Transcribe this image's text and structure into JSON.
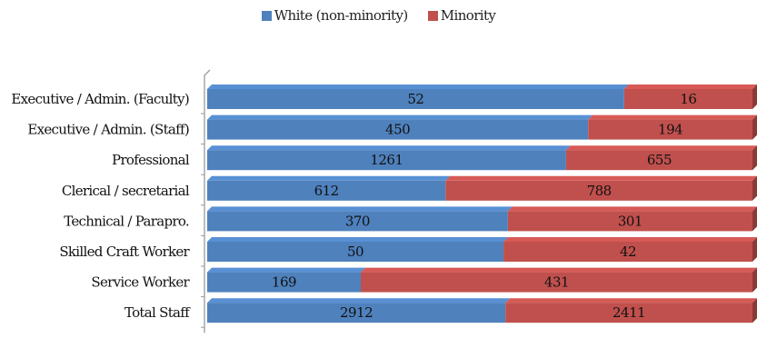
{
  "chart_data": {
    "type": "bar",
    "orientation": "horizontal",
    "stacked": true,
    "normalized": true,
    "categories": [
      "Executive / Admin. (Faculty)",
      "Executive / Admin. (Staff)",
      "Professional",
      "Clerical / secretarial",
      "Technical / Parapro.",
      "Skilled Craft Worker",
      "Service Worker",
      "Total Staff"
    ],
    "series": [
      {
        "name": "White (non-minority)",
        "color": "#4f81bd",
        "values": [
          52,
          450,
          1261,
          612,
          370,
          50,
          169,
          2912
        ]
      },
      {
        "name": "Minority",
        "color": "#c0504d",
        "values": [
          16,
          194,
          655,
          788,
          301,
          42,
          431,
          2411
        ]
      }
    ],
    "title": "",
    "xlabel": "",
    "ylabel": "",
    "legend_position": "top",
    "grid": false
  }
}
